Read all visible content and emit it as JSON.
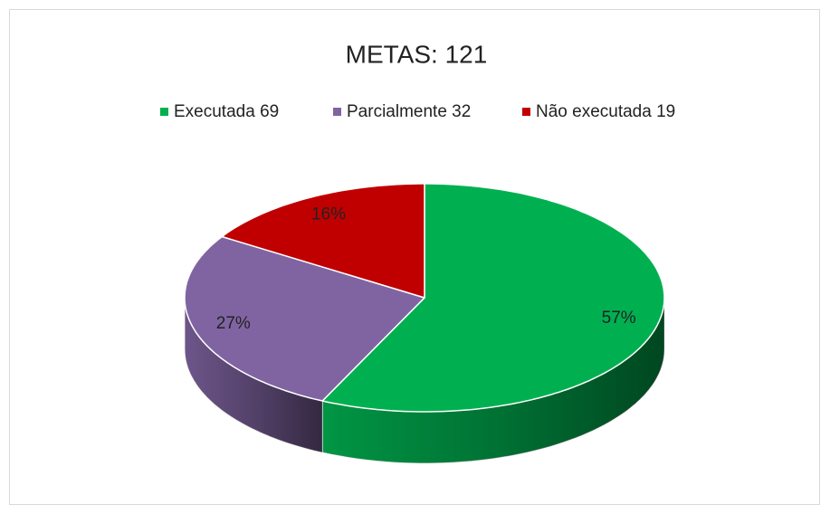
{
  "chart_data": {
    "type": "pie",
    "title": "METAS: 121",
    "categories": [
      "Executada 69",
      "Parcialmente 32",
      "Não executada 19"
    ],
    "values": [
      57,
      27,
      16
    ],
    "value_labels": [
      "57%",
      "27%",
      "16%"
    ],
    "colors": [
      "#00b050",
      "#8064a2",
      "#c00000"
    ],
    "legend": "top"
  }
}
